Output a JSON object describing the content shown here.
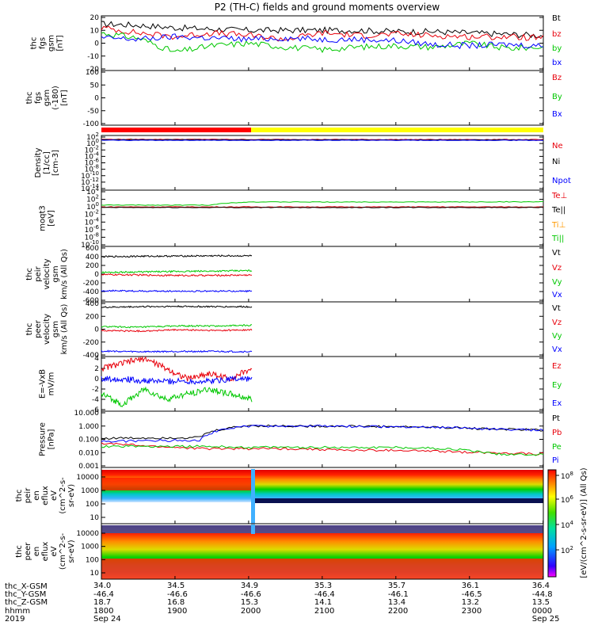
{
  "title": "P2 (TH-C) fields and ground moments overview",
  "colors": {
    "black": "#000000",
    "red": "#e8000b",
    "green": "#00c800",
    "blue": "#0000ff",
    "yellow": "#ffff00",
    "bar_red": "#ff0000"
  },
  "chart_data": [
    {
      "type": "line",
      "panel": "fgs",
      "ylabel": [
        "thc",
        "fgs",
        "gsm",
        "[nT]"
      ],
      "ylim": [
        -20,
        20
      ],
      "yticks": [
        "20",
        "10",
        "0",
        "-10",
        "-20"
      ],
      "series": [
        {
          "name": "Bt",
          "color": "#000000",
          "values": [
            15,
            14,
            12,
            11,
            10,
            10,
            10,
            10,
            9,
            9,
            8,
            7,
            6
          ]
        },
        {
          "name": "bz",
          "color": "#e8000b",
          "values": [
            12,
            8,
            5,
            8,
            6,
            3,
            8,
            6,
            7,
            6,
            5,
            5,
            4
          ]
        },
        {
          "name": "by",
          "color": "#00c800",
          "values": [
            8,
            4,
            -7,
            -2,
            0,
            -3,
            -5,
            -3,
            -2,
            -3,
            0,
            -4,
            -3
          ]
        },
        {
          "name": "bx",
          "color": "#0000ff",
          "values": [
            4,
            3,
            5,
            4,
            3,
            4,
            3,
            3,
            2,
            -1,
            -2,
            -1,
            -2
          ]
        }
      ]
    },
    {
      "type": "line",
      "panel": "fgs_slow",
      "ylabel": [
        "thc",
        "fgs",
        "gsm",
        "(-180)",
        "[nT]"
      ],
      "ylim": [
        -120,
        100
      ],
      "yticks": [
        "100",
        "50",
        "0",
        "-50",
        "-100"
      ],
      "series": [
        {
          "name": "Bz",
          "color": "#e8000b",
          "values": []
        },
        {
          "name": "By",
          "color": "#00c800",
          "values": []
        },
        {
          "name": "Bx",
          "color": "#0000ff",
          "values": []
        }
      ]
    },
    {
      "type": "line",
      "panel": "density",
      "ylabel": [
        "Density",
        "[1/cc]",
        "[cm-3]"
      ],
      "scale": "log",
      "yticks": [
        "10^2",
        "10^0",
        "10^-2",
        "10^-4",
        "10^-6",
        "10^-8",
        "10^-10",
        "10^-12",
        "10^-14"
      ],
      "series": [
        {
          "name": "Ne",
          "color": "#e8000b",
          "values": [
            20,
            20,
            20,
            20,
            18,
            18,
            18,
            18,
            17,
            17,
            17,
            17,
            16
          ]
        },
        {
          "name": "Ni",
          "color": "#000000",
          "values": [
            15,
            15,
            15,
            15,
            14,
            14,
            14,
            14,
            13,
            13,
            13,
            13,
            12
          ]
        },
        {
          "name": "Npot",
          "color": "#0000ff",
          "values": [
            10,
            10,
            10,
            10,
            10,
            10,
            10,
            10,
            10,
            10,
            10,
            10,
            10
          ]
        }
      ]
    },
    {
      "type": "line",
      "panel": "temperature",
      "ylabel": [
        "moqt3",
        "[eV]"
      ],
      "scale": "log",
      "yticks": [
        "10^4",
        "10^2",
        "10^0",
        "10^-2",
        "10^-4",
        "10^-6",
        "10^-8",
        "10^-10"
      ],
      "series": [
        {
          "name": "Te⊥",
          "color": "#e8000b",
          "values": [
            1,
            1,
            1,
            1,
            1,
            1,
            1,
            1,
            1,
            1,
            1,
            1,
            1
          ]
        },
        {
          "name": "Te||",
          "color": "#000000",
          "values": [
            0.7,
            0.7,
            0.7,
            0.7,
            0.7,
            0.7,
            0.7,
            0.7,
            0.7,
            0.7,
            0.7,
            0.7,
            0.7
          ]
        },
        {
          "name": "Ti⊥",
          "color": "#ff9900",
          "values": []
        },
        {
          "name": "Ti||",
          "color": "#00c800",
          "values": [
            3,
            3,
            3,
            3,
            20,
            20,
            20,
            20,
            20,
            20,
            20,
            22,
            22
          ]
        }
      ]
    },
    {
      "type": "line",
      "panel": "peir_velocity",
      "ylabel": [
        "thc",
        "peir",
        "velocity",
        "gsm",
        "km/s (All Qs)"
      ],
      "ylim": [
        -600,
        600
      ],
      "yticks": [
        "600",
        "400",
        "200",
        "0",
        "-200",
        "-400",
        "-600"
      ],
      "series": [
        {
          "name": "Vt",
          "color": "#000000",
          "values": [
            400,
            410,
            415,
            420,
            420
          ]
        },
        {
          "name": "Vz",
          "color": "#e8000b",
          "values": [
            -10,
            -20,
            -30,
            -30,
            -20
          ]
        },
        {
          "name": "Vy",
          "color": "#00c800",
          "values": [
            40,
            50,
            60,
            70,
            80
          ]
        },
        {
          "name": "Vx",
          "color": "#0000ff",
          "values": [
            -380,
            -390,
            -390,
            -390,
            -390
          ]
        }
      ]
    },
    {
      "type": "line",
      "panel": "peer_velocity",
      "ylabel": [
        "thc",
        "peer",
        "velocity",
        "gsm",
        "km/s (All Qs)"
      ],
      "ylim": [
        -400,
        400
      ],
      "yticks": [
        "400",
        "200",
        "0",
        "-200",
        "-400"
      ],
      "series": [
        {
          "name": "Vt",
          "color": "#000000",
          "values": [
            340,
            350,
            355,
            350,
            350
          ]
        },
        {
          "name": "Vz",
          "color": "#e8000b",
          "values": [
            -20,
            -30,
            -10,
            -20,
            -10
          ]
        },
        {
          "name": "Vy",
          "color": "#00c800",
          "values": [
            40,
            30,
            50,
            50,
            60
          ]
        },
        {
          "name": "Vx",
          "color": "#0000ff",
          "values": [
            -340,
            -350,
            -345,
            -345,
            -350
          ]
        }
      ]
    },
    {
      "type": "line",
      "panel": "efield",
      "ylabel": [
        "E=-VxB",
        "mV/m"
      ],
      "ylim": [
        -6,
        4
      ],
      "yticks": [
        "4",
        "2",
        "0",
        "-2",
        "-4",
        "-6"
      ],
      "series": [
        {
          "name": "Ez",
          "color": "#e8000b",
          "values": [
            2,
            3,
            4,
            2,
            0,
            1,
            0,
            2
          ]
        },
        {
          "name": "Ey",
          "color": "#00c800",
          "values": [
            -3,
            -5,
            -2,
            -4,
            -3,
            -2,
            -3,
            -4
          ]
        },
        {
          "name": "Ex",
          "color": "#0000ff",
          "values": [
            0,
            0,
            -0.5,
            -0.5,
            -0.5,
            -0.5,
            0,
            0
          ]
        }
      ]
    },
    {
      "type": "line",
      "panel": "pressure",
      "ylabel": [
        "Pressure",
        "[nPa]"
      ],
      "scale": "log",
      "yticks": [
        "10.000",
        "1.000",
        "0.100",
        "0.010",
        "0.001"
      ],
      "series": [
        {
          "name": "Pt",
          "color": "#000000",
          "values": [
            0.12,
            0.13,
            0.14,
            1.1,
            1.0,
            1.0,
            0.9,
            0.8,
            0.6,
            0.5
          ]
        },
        {
          "name": "Pb",
          "color": "#e8000b",
          "values": [
            0.05,
            0.03,
            0.02,
            0.02,
            0.02,
            0.015,
            0.015,
            0.012,
            0.01,
            0.008
          ]
        },
        {
          "name": "Pe",
          "color": "#00c800",
          "values": [
            0.03,
            0.03,
            0.03,
            0.025,
            0.025,
            0.025,
            0.025,
            0.02,
            0.008,
            0.007
          ]
        },
        {
          "name": "Pi",
          "color": "#0000ff",
          "values": [
            0.07,
            0.08,
            0.09,
            1.0,
            1.0,
            0.95,
            0.9,
            0.8,
            0.6,
            0.5
          ]
        }
      ]
    },
    {
      "type": "heatmap",
      "panel": "peir_spec",
      "ylabel": [
        "thc",
        "peir",
        "en",
        "eflux",
        "eV",
        "(cm^2-s-",
        "sr-eV)"
      ],
      "yticks": [
        "10000",
        "1000",
        "100",
        "10"
      ]
    },
    {
      "type": "heatmap",
      "panel": "peer_spec",
      "ylabel": [
        "thc",
        "peer",
        "en",
        "eflux",
        "eV",
        "(cm^2-s-",
        "sr-eV)"
      ],
      "yticks": [
        "10000",
        "1000",
        "100",
        "10"
      ]
    }
  ],
  "colorbar": {
    "label": "[eV/(cm^2-s-sr-eV)] (All Qs)",
    "ticks": [
      "10^8",
      "10^6",
      "10^4",
      "10^2"
    ]
  },
  "axis": {
    "row_labels": [
      "thc_X-GSM",
      "thc_Y-GSM",
      "thc_Z-GSM",
      "hhmm",
      "2019"
    ],
    "columns": [
      {
        "x": "34.0",
        "y": "-46.4",
        "z": "18.7",
        "t": "1800",
        "d": "Sep 24"
      },
      {
        "x": "34.5",
        "y": "-46.6",
        "z": "16.8",
        "t": "1900",
        "d": ""
      },
      {
        "x": "34.9",
        "y": "-46.6",
        "z": "15.3",
        "t": "2000",
        "d": ""
      },
      {
        "x": "35.3",
        "y": "-46.4",
        "z": "14.1",
        "t": "2100",
        "d": ""
      },
      {
        "x": "35.7",
        "y": "-46.1",
        "z": "13.4",
        "t": "2200",
        "d": ""
      },
      {
        "x": "36.1",
        "y": "-46.5",
        "z": "13.2",
        "t": "2300",
        "d": ""
      },
      {
        "x": "36.4",
        "y": "-44.8",
        "z": "13.5",
        "t": "0000",
        "d": "Sep 25"
      }
    ]
  }
}
